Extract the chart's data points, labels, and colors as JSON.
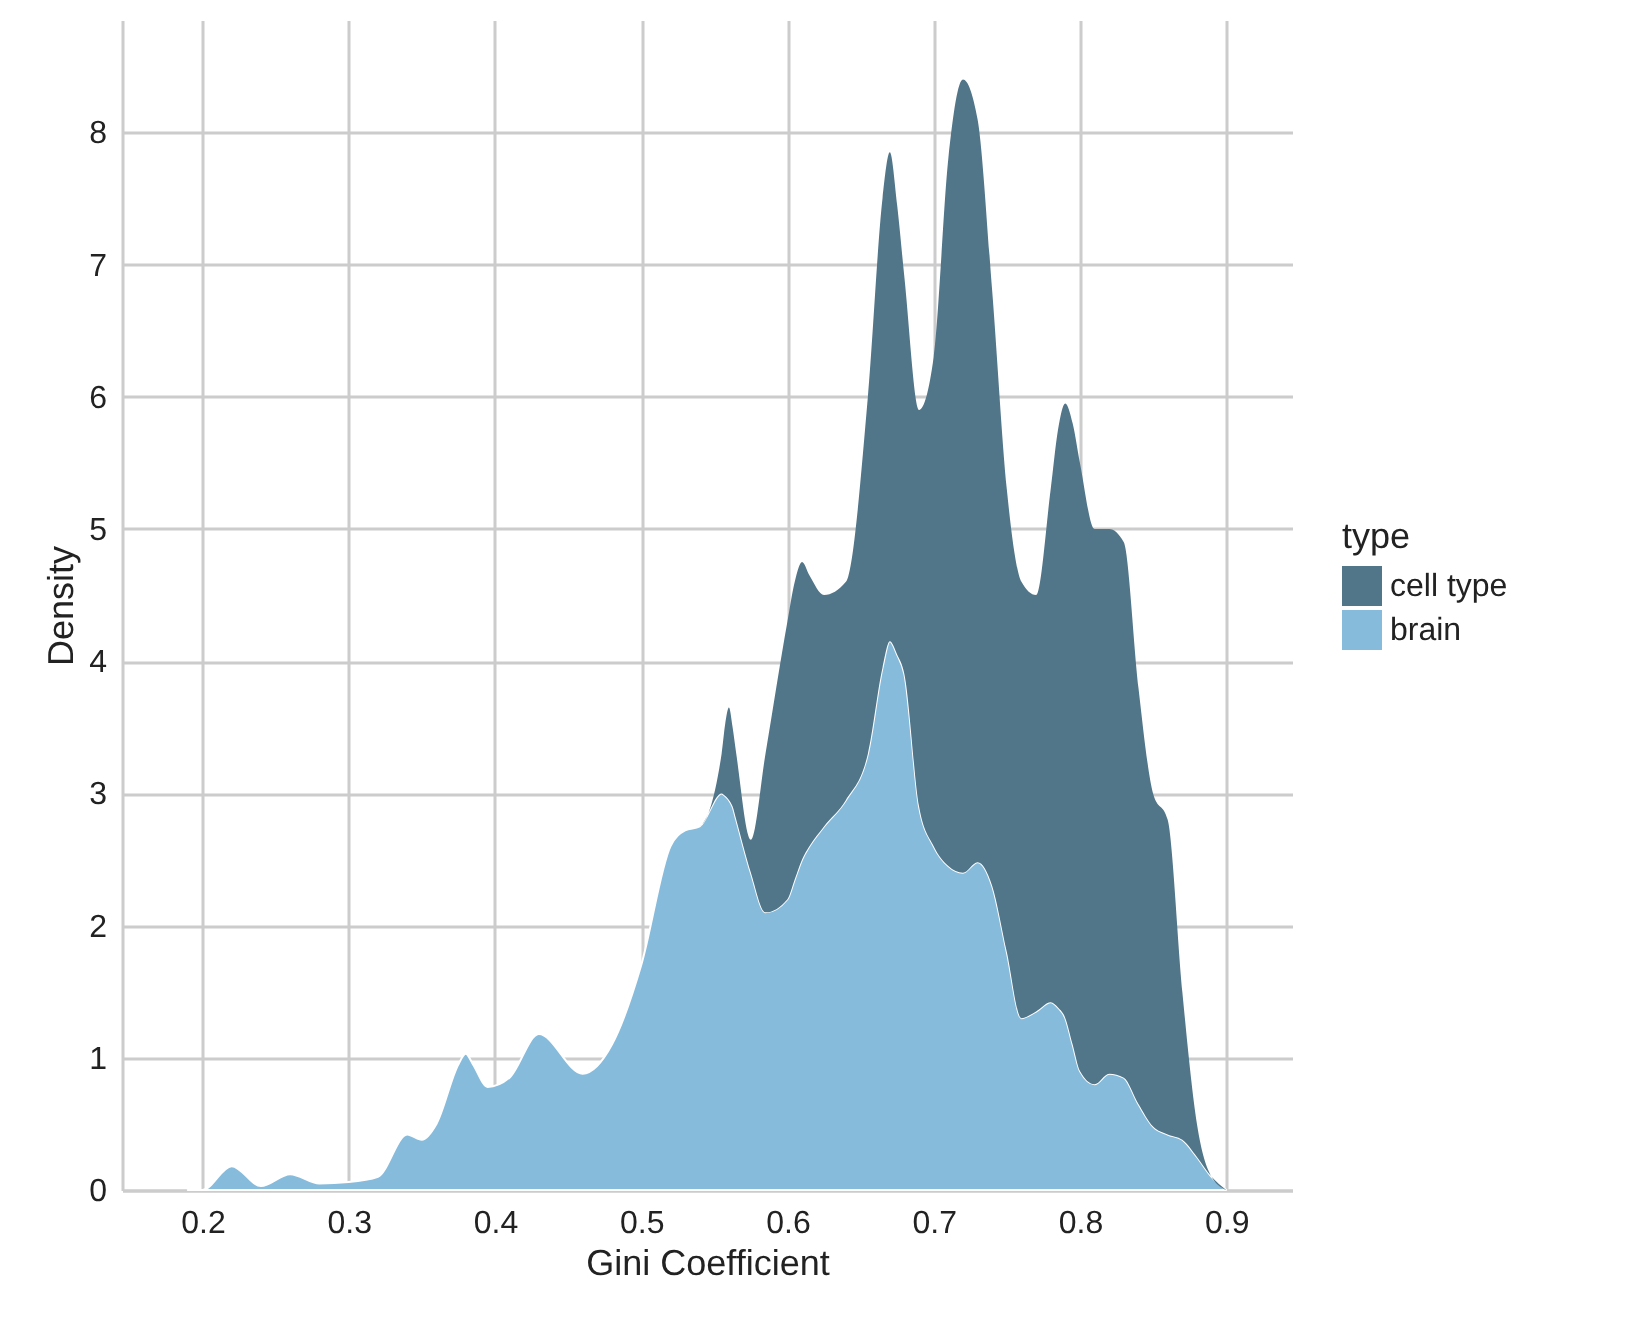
{
  "chart_data": {
    "type": "area",
    "stacked": true,
    "xlabel": "Gini Coefficient",
    "ylabel": "Density",
    "legend_title": "type",
    "legend": "right",
    "grid": true,
    "xlim": [
      0.145,
      0.945
    ],
    "xticks": [
      0.2,
      0.3,
      0.4,
      0.5,
      0.6,
      0.7,
      0.8,
      0.9
    ],
    "ylim": [
      0,
      8.85
    ],
    "yticks": [
      0,
      1,
      2,
      3,
      4,
      5,
      6,
      7,
      8
    ],
    "x": [
      0.19,
      0.2,
      0.22,
      0.24,
      0.26,
      0.28,
      0.3,
      0.32,
      0.34,
      0.35,
      0.36,
      0.375,
      0.38,
      0.385,
      0.395,
      0.41,
      0.43,
      0.46,
      0.48,
      0.5,
      0.52,
      0.53,
      0.54,
      0.555,
      0.5575,
      0.56,
      0.5625,
      0.565,
      0.575,
      0.585,
      0.6,
      0.605,
      0.61,
      0.615,
      0.625,
      0.64,
      0.655,
      0.665,
      0.67,
      0.675,
      0.68,
      0.69,
      0.7,
      0.71,
      0.72,
      0.73,
      0.74,
      0.75,
      0.76,
      0.77,
      0.78,
      0.785,
      0.79,
      0.795,
      0.8,
      0.81,
      0.82,
      0.83,
      0.84,
      0.85,
      0.86,
      0.87,
      0.88,
      0.89,
      0.9
    ],
    "series": [
      {
        "name": "brain",
        "color": "#86bbdc",
        "values": [
          0,
          0,
          0.18,
          0.03,
          0.12,
          0.05,
          0.06,
          0.1,
          0.42,
          0.38,
          0.5,
          0.95,
          1.03,
          0.95,
          0.78,
          0.85,
          1.18,
          0.88,
          1.1,
          1.7,
          2.6,
          2.72,
          2.75,
          3.0,
          2.98,
          2.95,
          2.9,
          2.8,
          2.4,
          2.1,
          2.2,
          2.35,
          2.5,
          2.6,
          2.75,
          2.95,
          3.3,
          3.95,
          4.15,
          4.05,
          3.9,
          2.9,
          2.6,
          2.45,
          2.4,
          2.48,
          2.3,
          1.8,
          1.3,
          1.35,
          1.42,
          1.38,
          1.3,
          1.1,
          0.9,
          0.8,
          0.88,
          0.85,
          0.65,
          0.48,
          0.42,
          0.38,
          0.25,
          0.1,
          0
        ]
      },
      {
        "name": "cell type",
        "color": "#517589",
        "values": [
          0,
          0,
          0,
          0,
          0,
          0,
          0,
          0,
          0,
          0,
          0,
          0,
          0,
          0,
          0,
          0,
          0,
          0,
          0,
          0,
          0,
          0,
          0,
          0.3,
          0.55,
          0.7,
          0.6,
          0.5,
          0.25,
          1.2,
          2.1,
          2.25,
          2.25,
          2.05,
          1.75,
          1.65,
          2.7,
          3.55,
          3.7,
          3.4,
          3.0,
          3.0,
          3.7,
          5.35,
          6.0,
          5.62,
          4.5,
          3.5,
          3.3,
          3.15,
          3.88,
          4.37,
          4.65,
          4.7,
          4.6,
          4.2,
          4.12,
          4.05,
          3.15,
          2.52,
          2.38,
          1.12,
          0.25,
          0,
          0
        ]
      }
    ]
  }
}
